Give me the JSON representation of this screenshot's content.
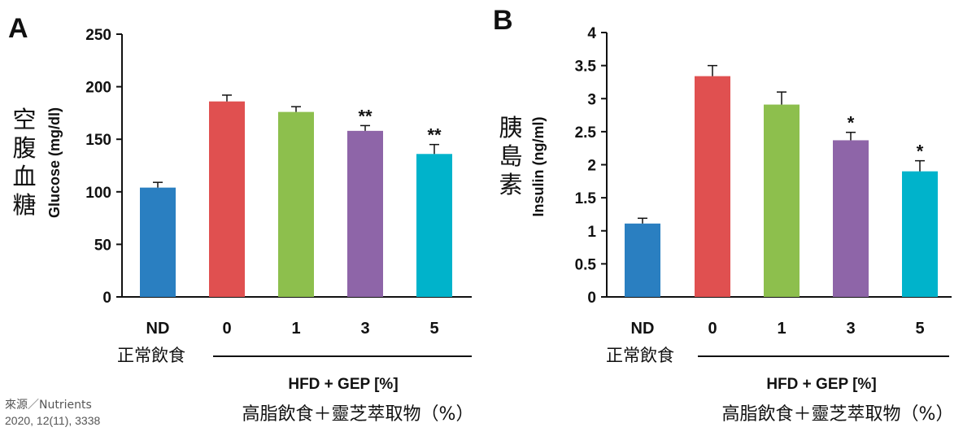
{
  "chart_data": [
    {
      "type": "bar",
      "panel": "A",
      "ylabel": "Glucose (mg/dl)",
      "ylabel_zh": [
        "空",
        "腹",
        "血",
        "糖"
      ],
      "ylim": [
        0,
        250
      ],
      "yticks": [
        0,
        50,
        100,
        150,
        200,
        250
      ],
      "categories": [
        "ND",
        "0",
        "1",
        "3",
        "5"
      ],
      "values": [
        104,
        186,
        176,
        158,
        136
      ],
      "errors": [
        5,
        6,
        5,
        5,
        9
      ],
      "significance": [
        "",
        "",
        "",
        "**",
        "**"
      ],
      "colors": [
        "#2a7fc1",
        "#e05050",
        "#8dbf4d",
        "#8e65a8",
        "#00b3cb"
      ]
    },
    {
      "type": "bar",
      "panel": "B",
      "ylabel": "Insulin (ng/ml)",
      "ylabel_zh": [
        "胰",
        "島",
        "素"
      ],
      "ylim": [
        0,
        4
      ],
      "yticks": [
        0,
        0.5,
        1,
        1.5,
        2,
        2.5,
        3,
        3.5,
        4
      ],
      "categories": [
        "ND",
        "0",
        "1",
        "3",
        "5"
      ],
      "values": [
        1.11,
        3.34,
        2.91,
        2.37,
        1.9
      ],
      "errors": [
        0.08,
        0.16,
        0.19,
        0.12,
        0.16
      ],
      "significance": [
        "",
        "",
        "",
        "*",
        "*"
      ],
      "colors": [
        "#2a7fc1",
        "#e05050",
        "#8dbf4d",
        "#8e65a8",
        "#00b3cb"
      ]
    }
  ],
  "labels": {
    "normal_diet": "正常飲食",
    "hfd_gep": "HFD + GEP [%]",
    "hfd_gep_zh": "高脂飲食＋靈芝萃取物（%）"
  },
  "source": {
    "line1": "來源／Nutrients",
    "line2": "2020, 12(11), 3338"
  }
}
